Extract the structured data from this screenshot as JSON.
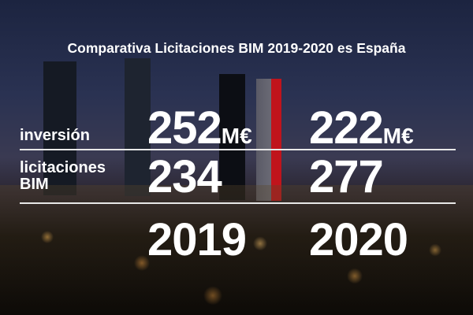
{
  "title": "Comparativa Licitaciones BIM 2019-2020 es España",
  "rows": [
    {
      "label": "inversión",
      "values": [
        "252",
        "222"
      ],
      "unit": "M€"
    },
    {
      "label_line1": "licitaciones",
      "label_line2": "BIM",
      "values": [
        "234",
        "277"
      ]
    }
  ],
  "years": [
    "2019",
    "2020"
  ],
  "colors": {
    "text": "#ffffff",
    "rule": "#e8e8e8",
    "tower_accent": "#c0141c"
  }
}
